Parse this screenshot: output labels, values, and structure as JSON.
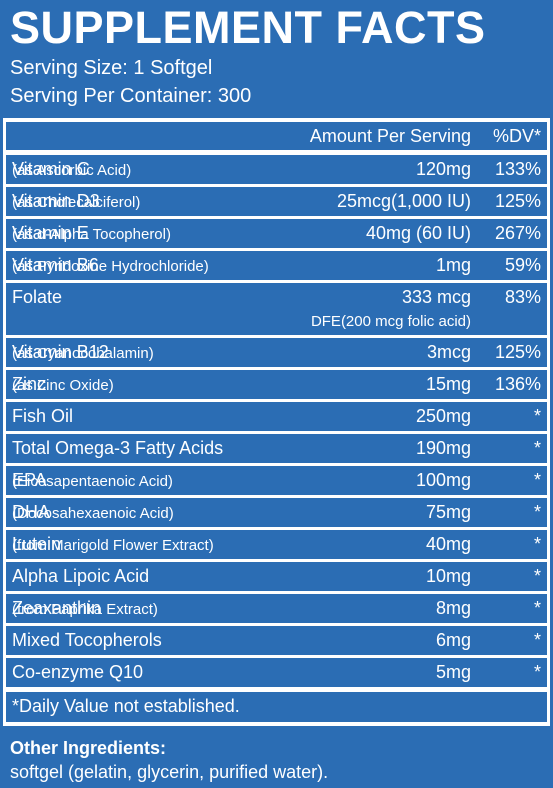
{
  "title": "SUPPLEMENT FACTS",
  "serving_size": "Serving Size: 1 Softgel",
  "servings": "Serving Per Container: 300",
  "header": {
    "amount": "Amount Per Serving",
    "dv": "%DV*"
  },
  "rows": [
    {
      "name": "Vitamin C",
      "detail": "(as Ascorbic Acid)",
      "amount": "120mg",
      "dv": "133%"
    },
    {
      "name": "Vitamin D3",
      "detail": "(as Cholecalciferol)",
      "amount": "25mcg(1,000 IU)",
      "dv": "125%"
    },
    {
      "name": "Vitamin E",
      "detail": "(as d-Alpha Tocopherol)",
      "amount": "40mg (60 IU)",
      "dv": "267%"
    },
    {
      "name": "Vitamin B6",
      "detail": "(as Pyridoxine Hydrochloride)",
      "amount": "1mg",
      "dv": "59%"
    },
    {
      "name": "Folate",
      "amount": "333 mcg",
      "note": "DFE(200 mcg folic acid)",
      "dv": "83%"
    },
    {
      "name": "Vitamin B12",
      "detail": "(as Cyanocobalamin)",
      "amount": "3mcg",
      "dv": "125%"
    },
    {
      "name": "Zinc",
      "detail": "(as Zinc Oxide)",
      "amount": "15mg",
      "dv": "136%"
    },
    {
      "name": "Fish Oil",
      "amount": "250mg",
      "dv": "*"
    },
    {
      "name": "Total Omega-3 Fatty Acids",
      "amount": "190mg",
      "dv": "*"
    },
    {
      "name": "EPA",
      "detail": "(Eicosapentaenoic Acid)",
      "amount": "100mg",
      "dv": "*"
    },
    {
      "name": "DHA",
      "detail": "(Docosahexaenoic Acid)",
      "amount": "75mg",
      "dv": "*"
    },
    {
      "name": "Lutein",
      "detail": "(from Marigold Flower Extract)",
      "amount": "40mg",
      "dv": "*"
    },
    {
      "name": "Alpha Lipoic Acid",
      "amount": "10mg",
      "dv": "*"
    },
    {
      "name": "Zeaxanthin",
      "detail": "(from Paprika Extract)",
      "amount": "8mg",
      "dv": "*"
    },
    {
      "name": "Mixed Tocopherols",
      "amount": "6mg",
      "dv": "*"
    },
    {
      "name": "Co-enzyme Q10",
      "amount": "5mg",
      "dv": "*"
    }
  ],
  "footnote": "*Daily Value not established.",
  "other_ingredients": {
    "heading": "Other Ingredients:",
    "text": "softgel (gelatin, glycerin, purified water)."
  }
}
